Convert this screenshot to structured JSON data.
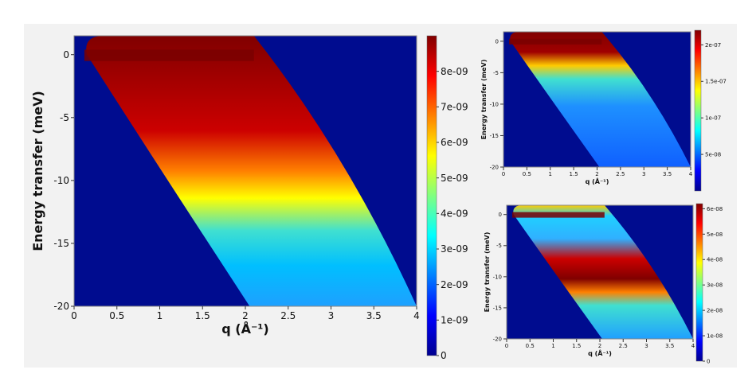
{
  "colors": {
    "background": "#f2f2f2",
    "plot_background": "#000c8f",
    "colormap": [
      "#00008f",
      "#0000ff",
      "#0080ff",
      "#00ffff",
      "#80ff80",
      "#ffff00",
      "#ff8000",
      "#ff0000",
      "#800000"
    ]
  },
  "chart_data": [
    {
      "type": "heatmap",
      "title": "",
      "xlabel": "q (Å⁻¹)",
      "ylabel": "Energy transfer (meV)",
      "xlim": [
        0,
        4
      ],
      "ylim": [
        -20,
        1.5
      ],
      "xticks": [
        "0",
        "0.5",
        "1",
        "1.5",
        "2",
        "2.5",
        "3",
        "3.5",
        "4"
      ],
      "yticks": [
        "0",
        "-5",
        "-10",
        "-15",
        "-20"
      ],
      "colorbar": {
        "min": 0,
        "max": 9e-09,
        "ticks": [
          "0",
          "1e-09",
          "2e-09",
          "3e-09",
          "4e-09",
          "5e-09",
          "6e-09",
          "7e-09",
          "8e-09"
        ]
      },
      "coverage": {
        "lower_edge_q_at_min_energy": 2.05,
        "upper_edge_q_at_min_energy": 4.0,
        "upper_edge_q_at_max_energy": 2.1
      },
      "features": [
        {
          "band": "elastic line",
          "energy_meV": 0,
          "level": "saturated"
        },
        {
          "band": "broad intensity",
          "energy_meV": [
            -12,
            1.5
          ],
          "level": "high"
        }
      ],
      "colormap": "jet",
      "legend": "colorbar right"
    },
    {
      "type": "heatmap",
      "title": "",
      "xlabel": "q (Å⁻¹)",
      "ylabel": "Energy transfer (meV)",
      "xlim": [
        0,
        4
      ],
      "ylim": [
        -20,
        1.5
      ],
      "xticks": [
        "0",
        "0.5",
        "1",
        "1.5",
        "2",
        "2.5",
        "3",
        "3.5",
        "4"
      ],
      "yticks": [
        "0",
        "-5",
        "-10",
        "-15",
        "-20"
      ],
      "colorbar": {
        "min": 0,
        "max": 2.2e-07,
        "ticks": [
          "5e-08",
          "1e-07",
          "1.5e-07",
          "2e-07"
        ]
      },
      "coverage": {
        "lower_edge_q_at_min_energy": 2.05,
        "upper_edge_q_at_min_energy": 4.0,
        "upper_edge_q_at_max_energy": 2.1
      },
      "features": [
        {
          "band": "elastic line",
          "energy_meV": [
            -4,
            1.5
          ],
          "level": "saturated"
        }
      ],
      "colormap": "jet",
      "legend": "colorbar right"
    },
    {
      "type": "heatmap",
      "title": "",
      "xlabel": "q (Å⁻¹)",
      "ylabel": "Energy transfer (meV)",
      "xlim": [
        0,
        4
      ],
      "ylim": [
        -20,
        1.5
      ],
      "xticks": [
        "0",
        "0.5",
        "1",
        "1.5",
        "2",
        "2.5",
        "3",
        "3.5",
        "4"
      ],
      "yticks": [
        "0",
        "-5",
        "-10",
        "-15",
        "-20"
      ],
      "colorbar": {
        "min": 0,
        "max": 6.2e-08,
        "ticks": [
          "0",
          "1e-08",
          "2e-08",
          "3e-08",
          "4e-08",
          "5e-08",
          "6e-08"
        ]
      },
      "coverage": {
        "lower_edge_q_at_min_energy": 2.05,
        "upper_edge_q_at_min_energy": 4.0,
        "upper_edge_q_at_max_energy": 2.1
      },
      "features": [
        {
          "band": "elastic line",
          "energy_meV": 0,
          "level": "saturated"
        },
        {
          "band": "inelastic band",
          "energy_meV": [
            -9,
            -3.5
          ],
          "level": "saturated"
        }
      ],
      "colormap": "jet",
      "legend": "colorbar right"
    }
  ]
}
